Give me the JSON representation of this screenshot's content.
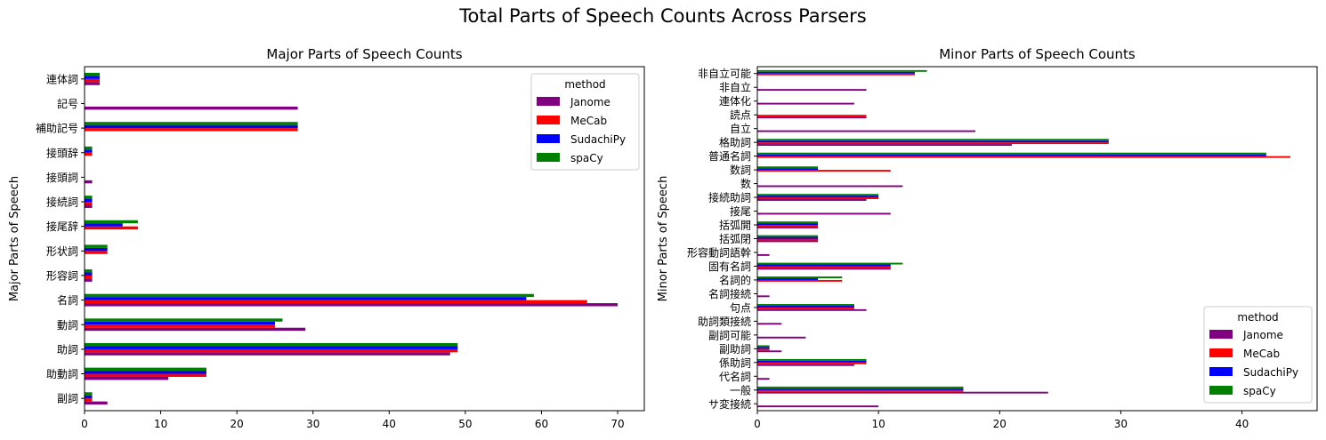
{
  "suptitle": "Total Parts of Speech Counts Across Parsers",
  "colors": {
    "Janome": "#800080",
    "MeCab": "#ff0000",
    "SudachiPy": "#0000ff",
    "spaCy": "#008000"
  },
  "chart_data": [
    {
      "type": "bar",
      "orientation": "horizontal",
      "title": "Major Parts of Speech Counts",
      "xlabel": "",
      "ylabel": "Major Parts of Speech",
      "xlim": [
        0,
        73.5
      ],
      "xticks": [
        0,
        10,
        20,
        30,
        40,
        50,
        60,
        70
      ],
      "legend": {
        "title": "method",
        "placement": "top-right"
      },
      "categories": [
        "副詞",
        "助動詞",
        "助詞",
        "動詞",
        "名詞",
        "形容詞",
        "形状詞",
        "接尾辞",
        "接続詞",
        "接頭詞",
        "接頭辞",
        "補助記号",
        "記号",
        "連体詞"
      ],
      "series": [
        {
          "name": "Janome",
          "values": [
            3,
            11,
            48,
            29,
            70,
            1,
            0,
            0,
            1,
            1,
            0,
            0,
            28,
            2
          ]
        },
        {
          "name": "MeCab",
          "values": [
            1,
            16,
            49,
            25,
            66,
            1,
            3,
            7,
            1,
            0,
            1,
            28,
            0,
            2
          ]
        },
        {
          "name": "SudachiPy",
          "values": [
            1,
            16,
            49,
            25,
            58,
            1,
            3,
            5,
            1,
            0,
            1,
            28,
            0,
            2
          ]
        },
        {
          "name": "spaCy",
          "values": [
            1,
            16,
            49,
            26,
            59,
            1,
            3,
            7,
            1,
            0,
            1,
            28,
            0,
            2
          ]
        }
      ]
    },
    {
      "type": "bar",
      "orientation": "horizontal",
      "title": "Minor Parts of Speech Counts",
      "xlabel": "",
      "ylabel": "Minor Parts of Speech",
      "xlim": [
        0,
        46.2
      ],
      "xticks": [
        0,
        10,
        20,
        30,
        40
      ],
      "legend": {
        "title": "method",
        "placement": "bottom-right"
      },
      "categories": [
        "サ変接続",
        "一般",
        "代名詞",
        "係助詞",
        "副助詞",
        "副詞可能",
        "助詞類接続",
        "句点",
        "名詞接続",
        "名詞的",
        "固有名詞",
        "形容動詞語幹",
        "括弧閉",
        "括弧開",
        "接尾",
        "接続助詞",
        "数",
        "数詞",
        "普通名詞",
        "格助詞",
        "自立",
        "読点",
        "連体化",
        "非自立",
        "非自立可能"
      ],
      "series": [
        {
          "name": "Janome",
          "values": [
            10,
            24,
            1,
            8,
            2,
            4,
            2,
            9,
            1,
            0,
            11,
            1,
            5,
            5,
            11,
            9,
            12,
            0,
            0,
            21,
            18,
            9,
            8,
            9,
            0
          ]
        },
        {
          "name": "MeCab",
          "values": [
            0,
            17,
            0,
            9,
            1,
            0,
            0,
            8,
            0,
            7,
            11,
            0,
            5,
            5,
            0,
            10,
            0,
            11,
            44,
            29,
            0,
            9,
            0,
            0,
            13
          ]
        },
        {
          "name": "SudachiPy",
          "values": [
            0,
            17,
            0,
            9,
            1,
            0,
            0,
            8,
            0,
            5,
            11,
            0,
            5,
            5,
            0,
            10,
            0,
            5,
            42,
            29,
            0,
            0,
            0,
            0,
            13
          ]
        },
        {
          "name": "spaCy",
          "values": [
            0,
            17,
            0,
            9,
            1,
            0,
            0,
            8,
            0,
            7,
            12,
            0,
            5,
            5,
            0,
            10,
            0,
            5,
            42,
            29,
            0,
            0,
            0,
            0,
            14
          ]
        }
      ]
    }
  ]
}
